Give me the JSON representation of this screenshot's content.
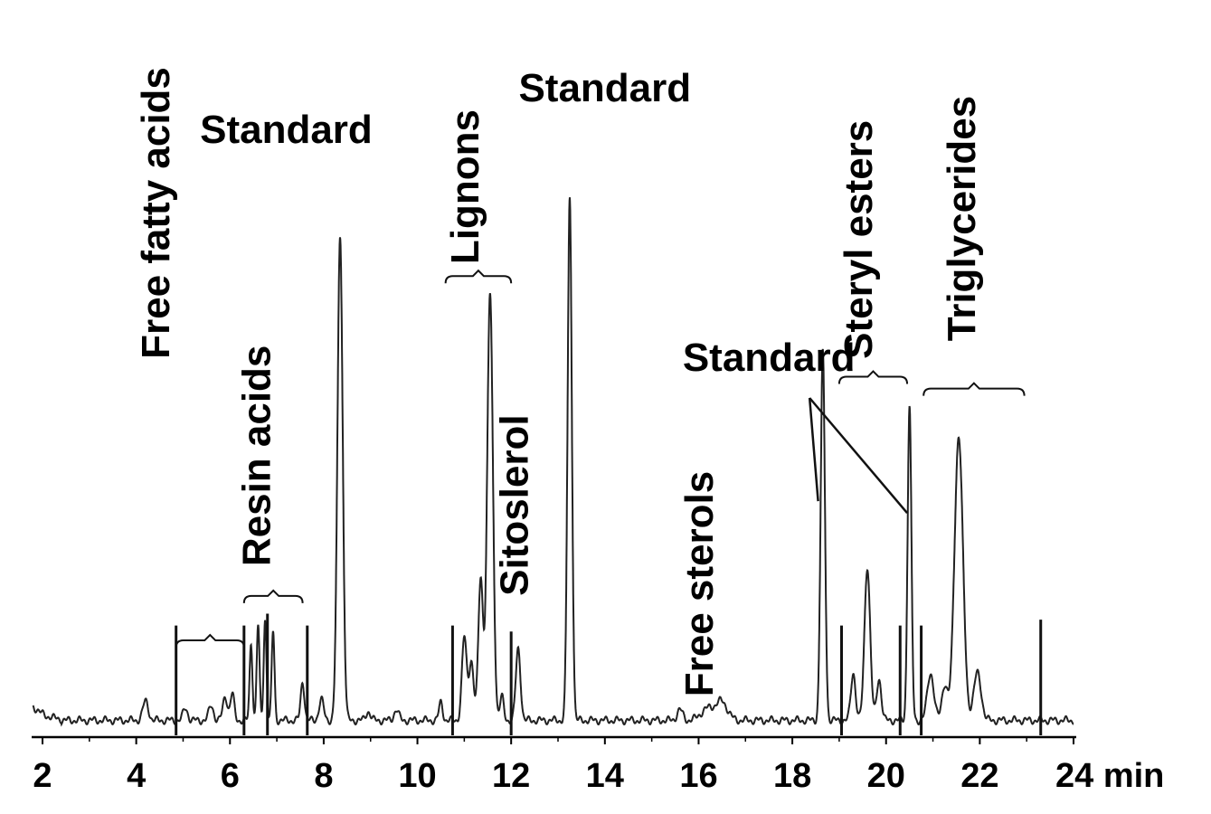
{
  "chart_data": {
    "type": "line",
    "x_unit": "min",
    "xlim": [
      2,
      24
    ],
    "x_ticks": [
      "2",
      "4",
      "6",
      "8",
      "10",
      "12",
      "14",
      "16",
      "18",
      "20",
      "22",
      "24 min"
    ],
    "baseline": 0.01,
    "peaks": [
      {
        "x": 4.2,
        "h": 0.032,
        "w": 0.06
      },
      {
        "x": 5.05,
        "h": 0.02,
        "w": 0.05
      },
      {
        "x": 5.6,
        "h": 0.025,
        "w": 0.05
      },
      {
        "x": 5.9,
        "h": 0.04,
        "w": 0.05
      },
      {
        "x": 6.05,
        "h": 0.045,
        "w": 0.04
      },
      {
        "x": 6.45,
        "h": 0.13,
        "w": 0.03
      },
      {
        "x": 6.6,
        "h": 0.16,
        "w": 0.03
      },
      {
        "x": 6.75,
        "h": 0.17,
        "w": 0.03
      },
      {
        "x": 6.92,
        "h": 0.15,
        "w": 0.03
      },
      {
        "x": 7.55,
        "h": 0.065,
        "w": 0.04
      },
      {
        "x": 7.95,
        "h": 0.035,
        "w": 0.05
      },
      {
        "x": 8.35,
        "h": 0.82,
        "w": 0.055
      },
      {
        "x": 8.95,
        "h": 0.015,
        "w": 0.05
      },
      {
        "x": 9.55,
        "h": 0.018,
        "w": 0.05
      },
      {
        "x": 10.5,
        "h": 0.03,
        "w": 0.04
      },
      {
        "x": 11.0,
        "h": 0.14,
        "w": 0.05
      },
      {
        "x": 11.15,
        "h": 0.1,
        "w": 0.05
      },
      {
        "x": 11.35,
        "h": 0.24,
        "w": 0.05
      },
      {
        "x": 11.55,
        "h": 0.72,
        "w": 0.06
      },
      {
        "x": 11.8,
        "h": 0.04,
        "w": 0.04
      },
      {
        "x": 12.15,
        "h": 0.12,
        "w": 0.05
      },
      {
        "x": 13.25,
        "h": 0.88,
        "w": 0.045
      },
      {
        "x": 15.6,
        "h": 0.018,
        "w": 0.06
      },
      {
        "x": 16.2,
        "h": 0.02,
        "w": 0.15
      },
      {
        "x": 16.5,
        "h": 0.03,
        "w": 0.12
      },
      {
        "x": 18.65,
        "h": 0.62,
        "w": 0.045
      },
      {
        "x": 19.3,
        "h": 0.08,
        "w": 0.05
      },
      {
        "x": 19.6,
        "h": 0.26,
        "w": 0.06
      },
      {
        "x": 19.85,
        "h": 0.07,
        "w": 0.05
      },
      {
        "x": 20.5,
        "h": 0.53,
        "w": 0.04
      },
      {
        "x": 20.95,
        "h": 0.08,
        "w": 0.07
      },
      {
        "x": 21.25,
        "h": 0.06,
        "w": 0.06
      },
      {
        "x": 21.55,
        "h": 0.48,
        "w": 0.09
      },
      {
        "x": 21.95,
        "h": 0.08,
        "w": 0.08
      }
    ],
    "markers": [
      {
        "x": 4.85,
        "h": 0.17
      },
      {
        "x": 6.3,
        "h": 0.17
      },
      {
        "x": 6.8,
        "h": 0.19
      },
      {
        "x": 7.65,
        "h": 0.17
      },
      {
        "x": 10.75,
        "h": 0.17
      },
      {
        "x": 12.0,
        "h": 0.16
      },
      {
        "x": 19.05,
        "h": 0.17
      },
      {
        "x": 20.3,
        "h": 0.17
      },
      {
        "x": 20.75,
        "h": 0.17
      },
      {
        "x": 23.3,
        "h": 0.18
      }
    ],
    "annotations": [
      {
        "text": "Free fatty acids",
        "rotated": true,
        "x": 4.7,
        "level": 0.62,
        "bracket": [
          4.85,
          6.3,
          0.145
        ]
      },
      {
        "text": "Resin acids",
        "rotated": true,
        "x": 6.85,
        "level": 0.27,
        "bracket": [
          6.3,
          7.55,
          0.22
        ]
      },
      {
        "text": "Standard",
        "rotated": false,
        "x": 7.2,
        "level": 0.985
      },
      {
        "text": "Lignons",
        "rotated": true,
        "x": 11.3,
        "level": 0.78,
        "bracket": [
          10.6,
          12.0,
          0.76
        ]
      },
      {
        "text": "Standard",
        "rotated": false,
        "x": 14.0,
        "level": 1.055
      },
      {
        "text": "Sitoslerol",
        "rotated": true,
        "x": 12.35,
        "level": 0.22
      },
      {
        "text": "Free sterols",
        "rotated": true,
        "x": 16.3,
        "level": 0.05
      },
      {
        "text": "Standard",
        "rotated": false,
        "x": 17.5,
        "level": 0.6,
        "arrows": [
          {
            "x": 18.55,
            "h": 0.38
          },
          {
            "x": 20.45,
            "h": 0.36
          }
        ]
      },
      {
        "text": "Steryl esters",
        "rotated": true,
        "x": 19.7,
        "level": 0.62,
        "bracket": [
          19.0,
          20.45,
          0.59
        ]
      },
      {
        "text": "Triglycerides",
        "rotated": true,
        "x": 21.9,
        "level": 0.65,
        "bracket": [
          20.8,
          22.95,
          0.57
        ]
      }
    ]
  }
}
